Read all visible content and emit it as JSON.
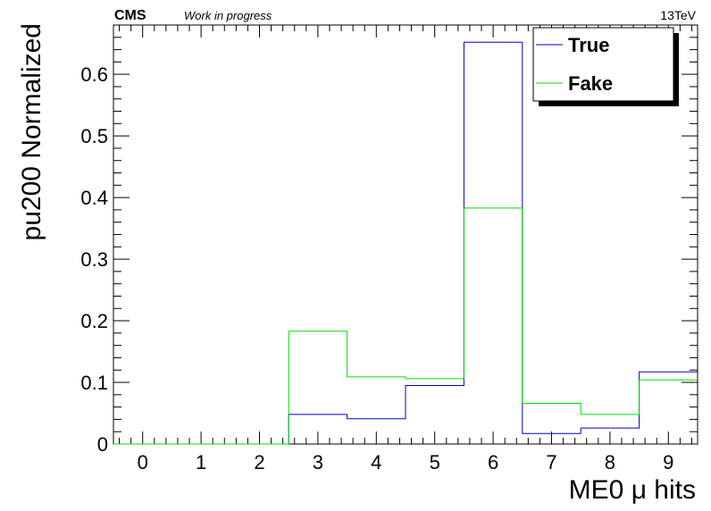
{
  "header": {
    "cms": "CMS",
    "status": "Work in progress",
    "energy": "13TeV"
  },
  "chart_data": {
    "type": "histogram-step",
    "xlabel": "ME0 μ hits",
    "ylabel": "pu200 Normalized",
    "xlim": [
      -0.5,
      9.5
    ],
    "ylim": [
      0,
      0.68
    ],
    "x_tick_labels": [
      "0",
      "1",
      "2",
      "3",
      "4",
      "5",
      "6",
      "7",
      "8",
      "9"
    ],
    "y_tick_labels": [
      "0",
      "0.1",
      "0.2",
      "0.3",
      "0.4",
      "0.5",
      "0.6"
    ],
    "y_tick_values": [
      0,
      0.1,
      0.2,
      0.3,
      0.4,
      0.5,
      0.6
    ],
    "bins": [
      0,
      1,
      2,
      3,
      4,
      5,
      6,
      7,
      8,
      9
    ],
    "series": [
      {
        "name": "True",
        "color": "#0000cc",
        "values": [
          0,
          0,
          0,
          0.048,
          0.041,
          0.095,
          0.652,
          0.017,
          0.026,
          0.117
        ]
      },
      {
        "name": "Fake",
        "color": "#00dd00",
        "values": [
          0,
          0,
          0,
          0.183,
          0.109,
          0.106,
          0.383,
          0.066,
          0.048,
          0.104
        ]
      }
    ],
    "legend_position": "top-right",
    "grid": false
  }
}
